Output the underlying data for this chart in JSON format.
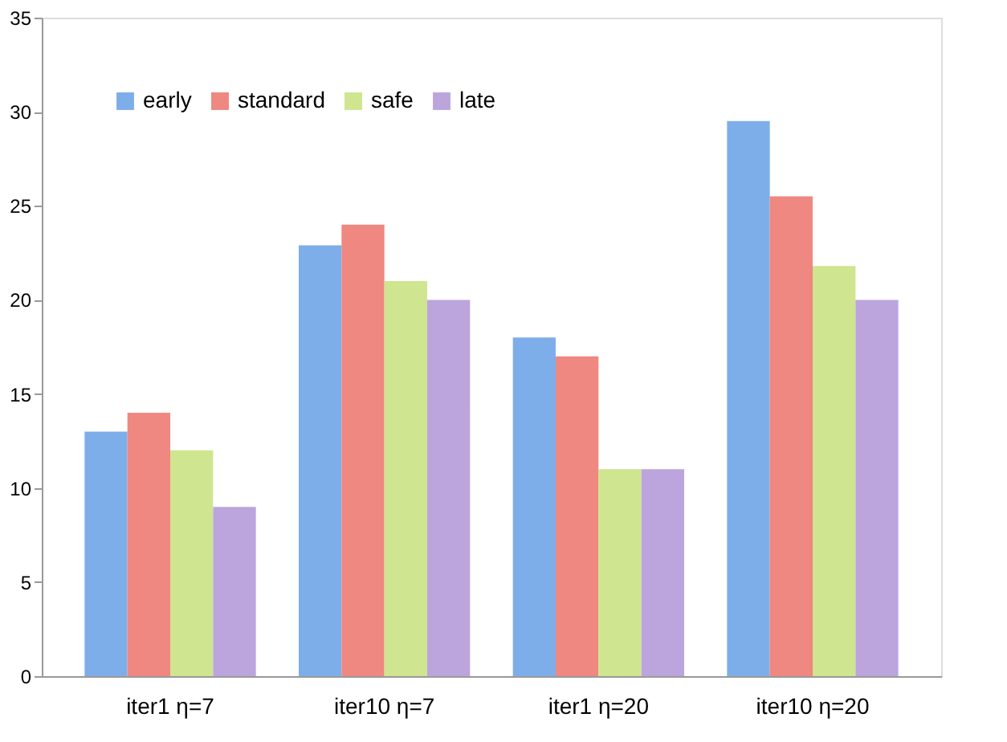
{
  "chart_data": {
    "type": "bar",
    "categories": [
      "iter1  η=7",
      "iter10  η=7",
      "iter1 η=20",
      "iter10 η=20"
    ],
    "series": [
      {
        "name": "early",
        "color": "#7eaee9",
        "values": [
          13,
          22.9,
          18,
          29.5
        ]
      },
      {
        "name": "standard",
        "color": "#ee8880",
        "values": [
          14,
          24,
          17,
          25.5
        ]
      },
      {
        "name": "safe",
        "color": "#cfe58f",
        "values": [
          12,
          21,
          11,
          21.8
        ]
      },
      {
        "name": "late",
        "color": "#bca5dd",
        "values": [
          9,
          20,
          11,
          20
        ]
      }
    ],
    "ylim": [
      0,
      35
    ],
    "yticks": [
      0,
      5,
      10,
      15,
      20,
      25,
      30,
      35
    ],
    "grid": false,
    "legend": "top left"
  }
}
